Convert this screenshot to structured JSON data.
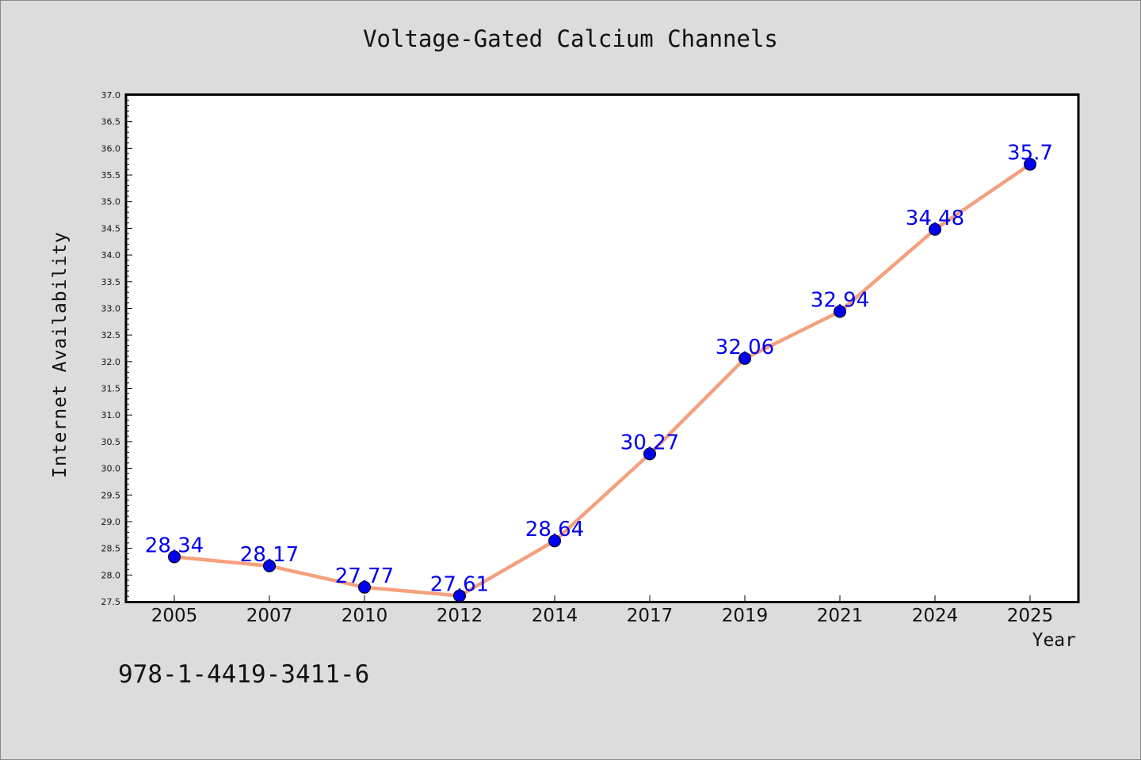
{
  "chart_data": {
    "type": "line",
    "title": "Voltage-Gated Calcium Channels",
    "xlabel": "Year",
    "ylabel": "Internet Availability",
    "categories": [
      "2005",
      "2007",
      "2010",
      "2012",
      "2014",
      "2017",
      "2019",
      "2021",
      "2024",
      "2025"
    ],
    "series": [
      {
        "values": [
          28.34,
          28.17,
          27.77,
          27.61,
          28.64,
          30.27,
          32.06,
          32.94,
          34.48,
          35.7
        ],
        "labels": [
          "28.34",
          "28.17",
          "27.77",
          "27.61",
          "28.64",
          "30.27",
          "32.06",
          "32.94",
          "34.48",
          "35.7"
        ],
        "line_color": "#f4a07e",
        "marker_color": "#0000ee"
      }
    ],
    "ylim": [
      27.5,
      37.0
    ],
    "yticks": [
      "27.5",
      "28.0",
      "28.5",
      "29.0",
      "29.5",
      "30.0",
      "30.5",
      "31.0",
      "31.5",
      "32.0",
      "32.5",
      "33.0",
      "33.5",
      "34.0",
      "34.5",
      "35.0",
      "35.5",
      "36.0",
      "36.5",
      "37.0"
    ],
    "label_color": "#0000ee",
    "grid": false,
    "legend": "none"
  },
  "annotation": "978-1-4419-3411-6"
}
